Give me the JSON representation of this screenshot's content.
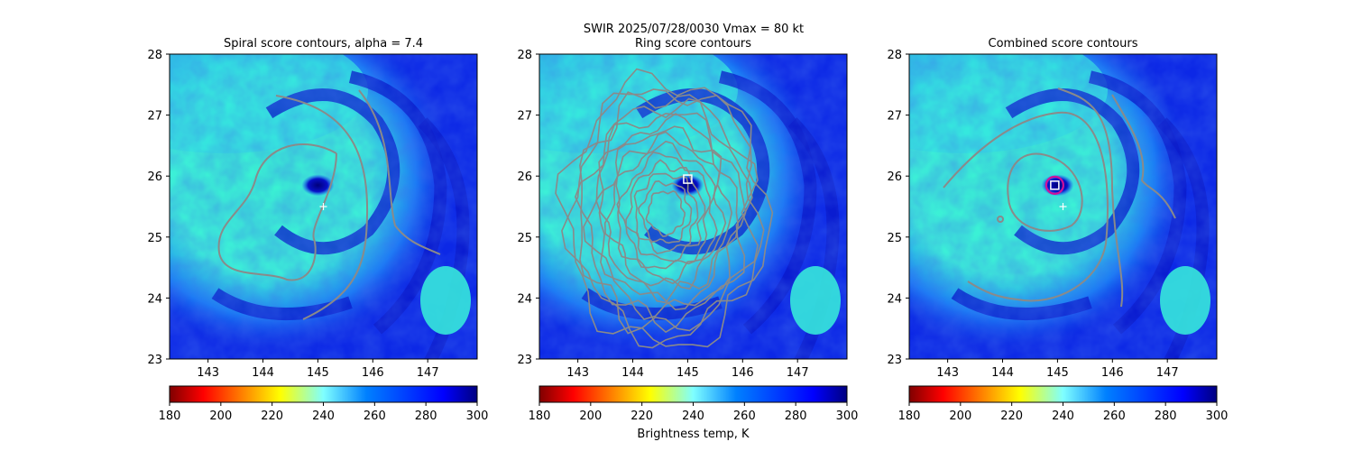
{
  "chart_data": {
    "type": "heatmap",
    "suptitle": "SWIR  2025/07/28/0030    Vmax = 80 kt",
    "colorbar_label": "Brightness temp, K",
    "colormap": "jet_r",
    "colorbar_range": [
      180,
      300
    ],
    "colorbar_ticks": [
      "180",
      "200",
      "220",
      "240",
      "260",
      "280",
      "300"
    ],
    "xlim": [
      142.3,
      147.9
    ],
    "ylim": [
      23,
      28
    ],
    "xticks": [
      "143",
      "144",
      "145",
      "146",
      "147"
    ],
    "yticks": [
      "23",
      "24",
      "25",
      "26",
      "27",
      "28"
    ],
    "storm_center": {
      "lon": 145.1,
      "lat": 26.0
    },
    "eye_cold_blob": {
      "lon": 145.0,
      "lat": 25.85
    },
    "first_guess_marker": {
      "lon": 145.1,
      "lat": 25.5,
      "symbol": "+"
    },
    "panels": [
      {
        "title": "Spiral score contours, alpha =  7.4",
        "contour_color": "#8a8a8a",
        "contour_style": "spiral",
        "markers": [
          {
            "type": "plus",
            "lon": 145.1,
            "lat": 25.5
          }
        ]
      },
      {
        "title": "Ring score contours",
        "contour_color": "#8a8a8a",
        "contour_style": "ring",
        "markers": [
          {
            "type": "square",
            "lon": 145.0,
            "lat": 25.95
          }
        ]
      },
      {
        "title": "Combined score contours",
        "contour_color": "#8a8a8a",
        "contour_style": "combined",
        "markers": [
          {
            "type": "plus",
            "lon": 145.1,
            "lat": 25.5
          },
          {
            "type": "circle",
            "lon": 144.95,
            "lat": 25.85,
            "color": "#d0109a"
          },
          {
            "type": "square",
            "lon": 144.95,
            "lat": 25.85
          }
        ]
      }
    ]
  }
}
